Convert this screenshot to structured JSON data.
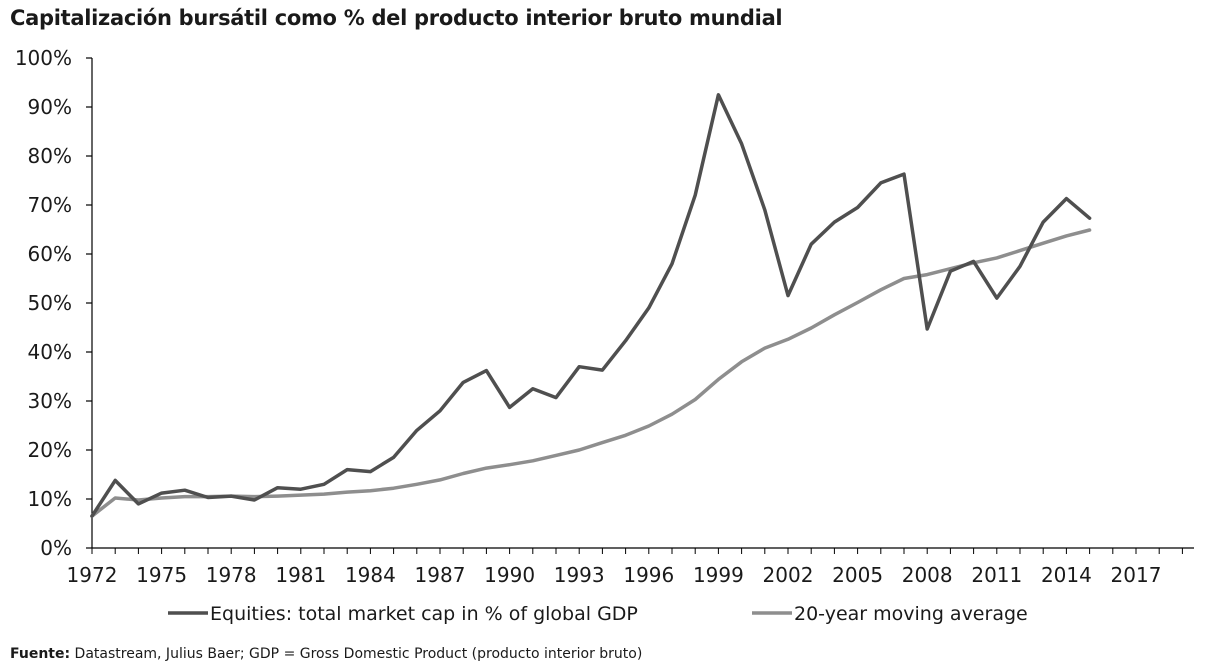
{
  "chart_data": {
    "type": "line",
    "title": "Capitalización bursátil como % del producto interior bruto mundial",
    "xlabel": "",
    "ylabel": "",
    "ylim": [
      0,
      100
    ],
    "xlim": [
      1972,
      2019.5
    ],
    "y_ticks": [
      "0%",
      "10%",
      "20%",
      "30%",
      "40%",
      "50%",
      "60%",
      "70%",
      "80%",
      "90%",
      "100%"
    ],
    "x_ticks": [
      "1972",
      "1975",
      "1978",
      "1981",
      "1984",
      "1987",
      "1990",
      "1993",
      "1996",
      "1999",
      "2002",
      "2005",
      "2008",
      "2011",
      "2014",
      "2017"
    ],
    "x": [
      1972,
      1973,
      1974,
      1975,
      1976,
      1977,
      1978,
      1979,
      1980,
      1981,
      1982,
      1983,
      1984,
      1985,
      1986,
      1987,
      1988,
      1989,
      1990,
      1991,
      1992,
      1993,
      1994,
      1995,
      1996,
      1997,
      1998,
      1999,
      2000,
      2001,
      2002,
      2003,
      2004,
      2005,
      2006,
      2007,
      2008,
      2009,
      2010,
      2011,
      2012,
      2013,
      2014,
      2015
    ],
    "series": [
      {
        "name": "Equities: total market cap in % of global GDP",
        "color": "#4f4f4f",
        "values": [
          6.5,
          13.8,
          9.0,
          11.2,
          11.8,
          10.3,
          10.6,
          9.8,
          12.3,
          12.0,
          13.0,
          16.0,
          15.6,
          18.5,
          24.0,
          28.0,
          33.8,
          36.2,
          28.7,
          32.5,
          30.7,
          37.0,
          36.3,
          42.3,
          49.0,
          58.0,
          72.0,
          92.5,
          82.5,
          69.0,
          51.5,
          62.0,
          66.5,
          69.5,
          74.5,
          76.3,
          44.7,
          56.5,
          58.5,
          51.0,
          57.5,
          66.5,
          71.3,
          67.3
        ]
      },
      {
        "name": "20-year moving average",
        "color": "#8e8e8e",
        "values": [
          6.5,
          10.2,
          9.8,
          10.2,
          10.5,
          10.5,
          10.6,
          10.5,
          10.6,
          10.8,
          11.0,
          11.4,
          11.7,
          12.2,
          13.0,
          13.9,
          15.2,
          16.3,
          17.0,
          17.8,
          18.9,
          20.0,
          21.5,
          23.0,
          24.9,
          27.3,
          30.3,
          34.4,
          38.0,
          40.8,
          42.6,
          44.9,
          47.6,
          50.1,
          52.7,
          55.0,
          55.8,
          57.0,
          58.2,
          59.2,
          60.7,
          62.2,
          63.7,
          64.9
        ]
      }
    ],
    "legend_position": "bottom"
  },
  "legend": {
    "equities_label": "Equities: total market cap in % of global GDP",
    "average_label": "20-year moving average"
  },
  "source": {
    "prefix": "Fuente:",
    "text": "Datastream, Julius Baer; GDP = Gross Domestic Product (producto interior bruto)"
  }
}
